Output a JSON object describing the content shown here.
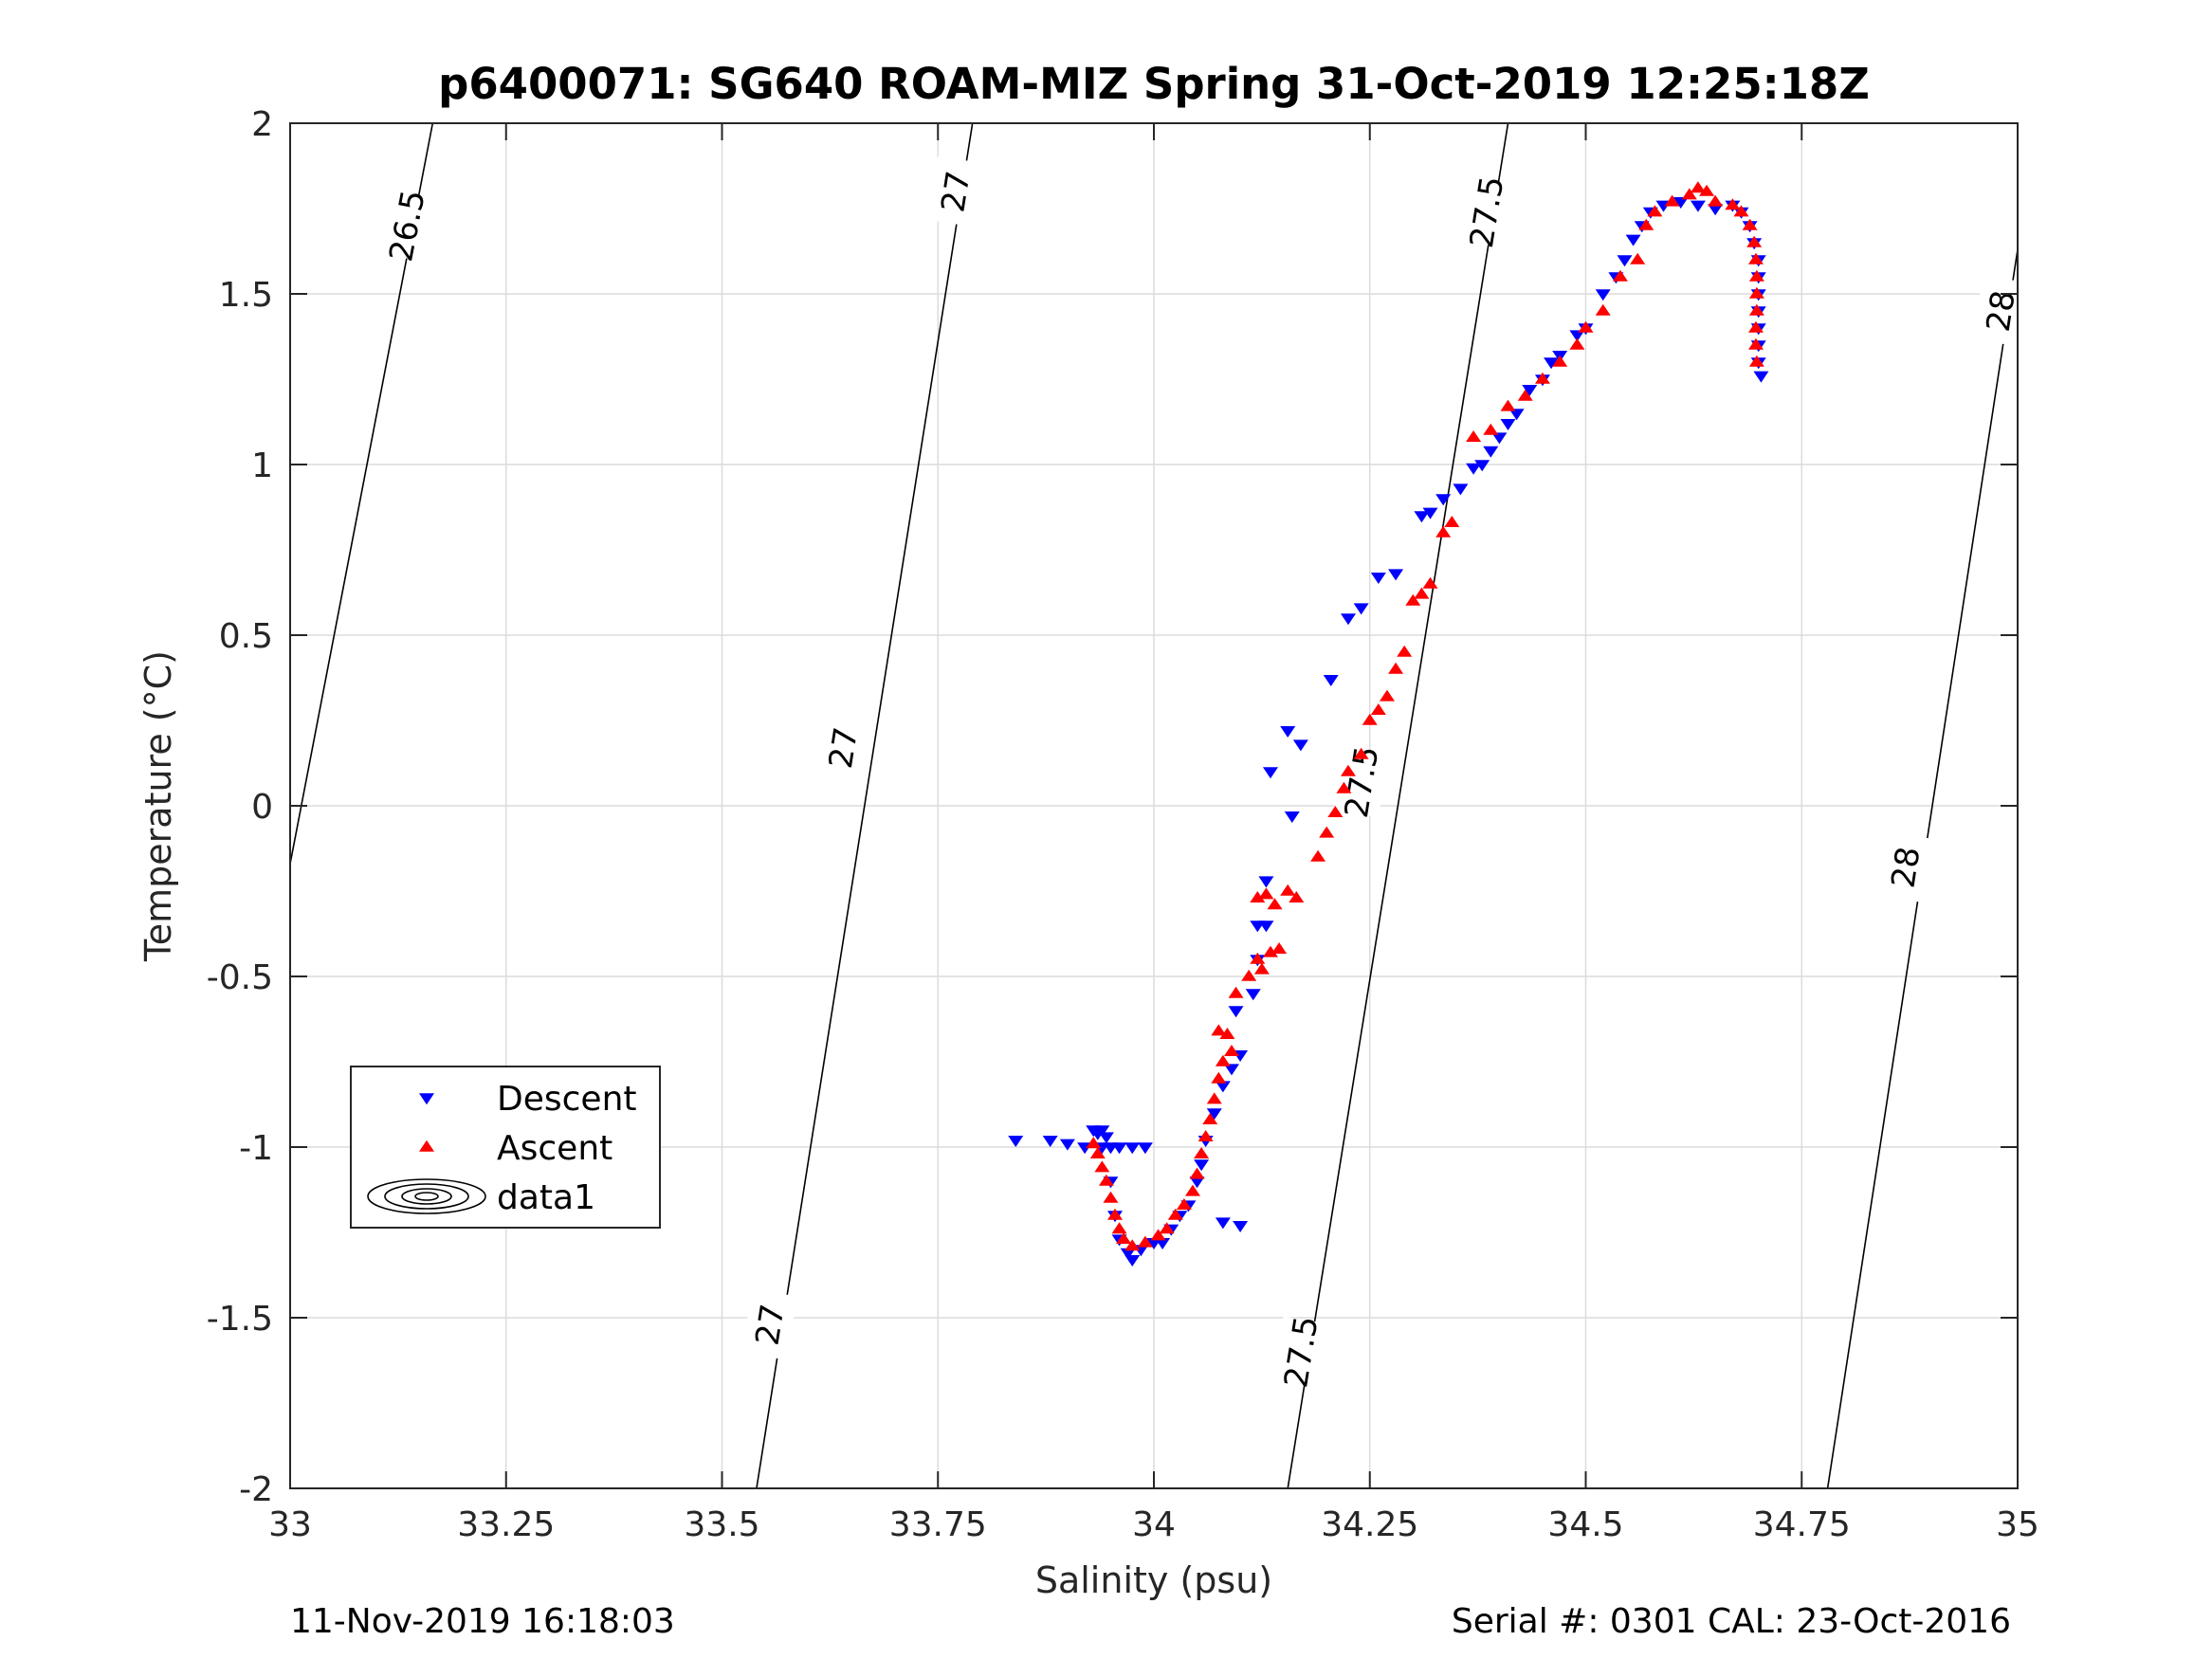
{
  "chart_data": {
    "type": "scatter",
    "title": "p6400071: SG640 ROAM-MIZ Spring 31-Oct-2019 12:25:18Z",
    "xlabel": "Salinity (psu)",
    "ylabel": "Temperature (°C)",
    "xlim": [
      33,
      35
    ],
    "ylim": [
      -2,
      2
    ],
    "xticks": [
      33,
      33.25,
      33.5,
      33.75,
      34,
      34.25,
      34.5,
      34.75,
      35
    ],
    "xtick_labels": [
      "33",
      "33.25",
      "33.5",
      "33.75",
      "34",
      "34.25",
      "34.5",
      "34.75",
      "35"
    ],
    "yticks": [
      -2,
      -1.5,
      -1,
      -0.5,
      0,
      0.5,
      1,
      1.5,
      2
    ],
    "ytick_labels": [
      "-2",
      "-1.5",
      "-1",
      "-0.5",
      "0",
      "0.5",
      "1",
      "1.5",
      "2"
    ],
    "grid": true,
    "legend_position": "lower-left",
    "legend": [
      {
        "label": "Descent",
        "marker": "triangle-down",
        "color": "#0000ff"
      },
      {
        "label": "Ascent",
        "marker": "triangle-up",
        "color": "#ff0000"
      },
      {
        "label": "data1",
        "marker": "contour",
        "color": "#000000"
      }
    ],
    "contours": [
      {
        "label": "26.5",
        "x": [
          33.0,
          33.165
        ],
        "y": [
          -0.17,
          2.0
        ],
        "label_points": [
          [
            33.135,
            1.7
          ]
        ]
      },
      {
        "label": "27",
        "x": [
          33.54,
          33.79
        ],
        "y": [
          -2.0,
          2.0
        ],
        "label_points": [
          [
            33.555,
            -1.52
          ],
          [
            33.64,
            0.17
          ],
          [
            33.77,
            1.8
          ]
        ]
      },
      {
        "label": "27.5",
        "x": [
          34.155,
          34.41
        ],
        "y": [
          -2.0,
          2.0
        ],
        "label_points": [
          [
            34.17,
            -1.6
          ],
          [
            34.24,
            0.07
          ],
          [
            34.385,
            1.74
          ]
        ]
      },
      {
        "label": "28",
        "x": [
          34.78,
          35.0
        ],
        "y": [
          -2.0,
          1.63
        ],
        "label_points": [
          [
            34.87,
            -0.18
          ],
          [
            34.98,
            1.45
          ]
        ]
      }
    ],
    "series": [
      {
        "name": "Descent",
        "marker": "triangle-down",
        "color": "#0000ff",
        "points": [
          [
            33.84,
            -0.98
          ],
          [
            33.88,
            -0.98
          ],
          [
            33.9,
            -0.99
          ],
          [
            33.92,
            -1.0
          ],
          [
            33.93,
            -0.95
          ],
          [
            33.94,
            -0.95
          ],
          [
            33.935,
            -0.96
          ],
          [
            33.945,
            -0.97
          ],
          [
            33.94,
            -1.0
          ],
          [
            33.95,
            -1.0
          ],
          [
            33.96,
            -1.0
          ],
          [
            33.975,
            -1.0
          ],
          [
            33.99,
            -1.0
          ],
          [
            33.95,
            -1.1
          ],
          [
            33.955,
            -1.2
          ],
          [
            33.96,
            -1.27
          ],
          [
            33.97,
            -1.31
          ],
          [
            33.975,
            -1.33
          ],
          [
            33.985,
            -1.3
          ],
          [
            34.0,
            -1.28
          ],
          [
            34.01,
            -1.28
          ],
          [
            34.02,
            -1.24
          ],
          [
            34.03,
            -1.2
          ],
          [
            34.04,
            -1.17
          ],
          [
            34.05,
            -1.1
          ],
          [
            34.055,
            -1.05
          ],
          [
            34.06,
            -0.98
          ],
          [
            34.07,
            -0.9
          ],
          [
            34.08,
            -0.82
          ],
          [
            34.09,
            -0.77
          ],
          [
            34.1,
            -0.73
          ],
          [
            34.08,
            -1.22
          ],
          [
            34.1,
            -1.23
          ],
          [
            34.095,
            -0.6
          ],
          [
            34.115,
            -0.55
          ],
          [
            34.12,
            -0.35
          ],
          [
            34.13,
            -0.22
          ],
          [
            34.13,
            -0.35
          ],
          [
            34.12,
            -0.45
          ],
          [
            34.16,
            -0.03
          ],
          [
            34.135,
            0.1
          ],
          [
            34.155,
            0.22
          ],
          [
            34.17,
            0.18
          ],
          [
            34.205,
            0.37
          ],
          [
            34.225,
            0.55
          ],
          [
            34.24,
            0.58
          ],
          [
            34.26,
            0.67
          ],
          [
            34.28,
            0.68
          ],
          [
            34.31,
            0.85
          ],
          [
            34.32,
            0.86
          ],
          [
            34.335,
            0.9
          ],
          [
            34.355,
            0.93
          ],
          [
            34.37,
            0.99
          ],
          [
            34.38,
            1.0
          ],
          [
            34.39,
            1.04
          ],
          [
            34.4,
            1.08
          ],
          [
            34.41,
            1.12
          ],
          [
            34.42,
            1.15
          ],
          [
            34.435,
            1.22
          ],
          [
            34.45,
            1.25
          ],
          [
            34.46,
            1.3
          ],
          [
            34.47,
            1.32
          ],
          [
            34.49,
            1.38
          ],
          [
            34.5,
            1.4
          ],
          [
            34.52,
            1.5
          ],
          [
            34.535,
            1.55
          ],
          [
            34.545,
            1.6
          ],
          [
            34.555,
            1.66
          ],
          [
            34.565,
            1.7
          ],
          [
            34.575,
            1.74
          ],
          [
            34.59,
            1.76
          ],
          [
            34.61,
            1.77
          ],
          [
            34.63,
            1.76
          ],
          [
            34.65,
            1.75
          ],
          [
            34.67,
            1.76
          ],
          [
            34.68,
            1.74
          ],
          [
            34.69,
            1.7
          ],
          [
            34.695,
            1.65
          ],
          [
            34.7,
            1.6
          ],
          [
            34.7,
            1.55
          ],
          [
            34.7,
            1.5
          ],
          [
            34.7,
            1.45
          ],
          [
            34.7,
            1.4
          ],
          [
            34.7,
            1.35
          ],
          [
            34.7,
            1.3
          ],
          [
            34.703,
            1.26
          ]
        ]
      },
      {
        "name": "Ascent",
        "marker": "triangle-up",
        "color": "#ff0000",
        "points": [
          [
            33.93,
            -0.99
          ],
          [
            33.935,
            -1.02
          ],
          [
            33.94,
            -1.06
          ],
          [
            33.945,
            -1.1
          ],
          [
            33.95,
            -1.15
          ],
          [
            33.955,
            -1.2
          ],
          [
            33.96,
            -1.24
          ],
          [
            33.965,
            -1.27
          ],
          [
            33.975,
            -1.29
          ],
          [
            33.99,
            -1.28
          ],
          [
            34.005,
            -1.26
          ],
          [
            34.015,
            -1.24
          ],
          [
            34.025,
            -1.2
          ],
          [
            34.035,
            -1.17
          ],
          [
            34.045,
            -1.13
          ],
          [
            34.05,
            -1.08
          ],
          [
            34.055,
            -1.02
          ],
          [
            34.06,
            -0.97
          ],
          [
            34.065,
            -0.92
          ],
          [
            34.07,
            -0.86
          ],
          [
            34.075,
            -0.8
          ],
          [
            34.08,
            -0.75
          ],
          [
            34.075,
            -0.66
          ],
          [
            34.085,
            -0.67
          ],
          [
            34.09,
            -0.72
          ],
          [
            34.095,
            -0.55
          ],
          [
            34.11,
            -0.5
          ],
          [
            34.12,
            -0.45
          ],
          [
            34.125,
            -0.48
          ],
          [
            34.135,
            -0.43
          ],
          [
            34.145,
            -0.42
          ],
          [
            34.12,
            -0.27
          ],
          [
            34.13,
            -0.26
          ],
          [
            34.14,
            -0.29
          ],
          [
            34.155,
            -0.25
          ],
          [
            34.165,
            -0.27
          ],
          [
            34.19,
            -0.15
          ],
          [
            34.2,
            -0.08
          ],
          [
            34.21,
            -0.02
          ],
          [
            34.22,
            0.05
          ],
          [
            34.225,
            0.1
          ],
          [
            34.24,
            0.15
          ],
          [
            34.25,
            0.25
          ],
          [
            34.26,
            0.28
          ],
          [
            34.27,
            0.32
          ],
          [
            34.28,
            0.4
          ],
          [
            34.29,
            0.45
          ],
          [
            34.3,
            0.6
          ],
          [
            34.31,
            0.62
          ],
          [
            34.32,
            0.65
          ],
          [
            34.335,
            0.8
          ],
          [
            34.345,
            0.83
          ],
          [
            34.37,
            1.08
          ],
          [
            34.39,
            1.1
          ],
          [
            34.41,
            1.17
          ],
          [
            34.43,
            1.2
          ],
          [
            34.45,
            1.25
          ],
          [
            34.47,
            1.3
          ],
          [
            34.49,
            1.35
          ],
          [
            34.5,
            1.4
          ],
          [
            34.52,
            1.45
          ],
          [
            34.54,
            1.55
          ],
          [
            34.56,
            1.6
          ],
          [
            34.57,
            1.7
          ],
          [
            34.58,
            1.74
          ],
          [
            34.6,
            1.77
          ],
          [
            34.62,
            1.79
          ],
          [
            34.63,
            1.81
          ],
          [
            34.64,
            1.8
          ],
          [
            34.65,
            1.77
          ],
          [
            34.67,
            1.76
          ],
          [
            34.68,
            1.74
          ],
          [
            34.69,
            1.7
          ],
          [
            34.695,
            1.65
          ],
          [
            34.697,
            1.6
          ],
          [
            34.698,
            1.55
          ],
          [
            34.698,
            1.5
          ],
          [
            34.698,
            1.45
          ],
          [
            34.697,
            1.4
          ],
          [
            34.697,
            1.35
          ],
          [
            34.698,
            1.3
          ]
        ]
      }
    ]
  },
  "footer": {
    "timestamp": "11-Nov-2019 16:18:03",
    "serial": "Serial #: 0301  CAL: 23-Oct-2016"
  }
}
